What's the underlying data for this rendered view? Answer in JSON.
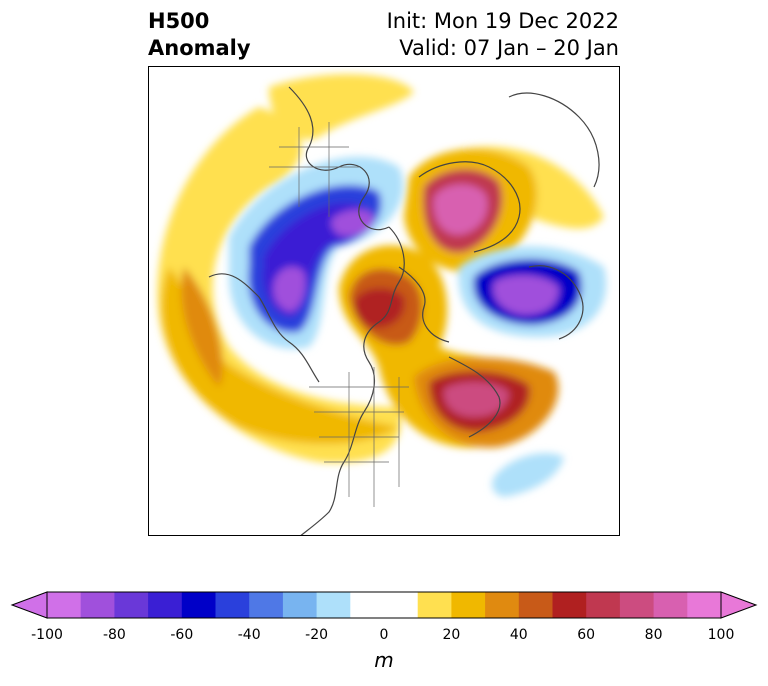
{
  "title": {
    "left_line1": "H500",
    "left_line2": "Anomaly",
    "right_line1": "Init: Mon 19 Dec 2022",
    "right_line2": "Valid: 07 Jan – 20 Jan"
  },
  "colorbar": {
    "units": "m",
    "ticks": [
      "-100",
      "-80",
      "-60",
      "-40",
      "-20",
      "0",
      "20",
      "40",
      "60",
      "80",
      "100"
    ],
    "colors": [
      "#d070e8",
      "#a050dc",
      "#6a38d8",
      "#3a1fd4",
      "#0000c8",
      "#2a40dc",
      "#4f78e6",
      "#78b4f0",
      "#aee0fa",
      "#ffffff",
      "#ffffff",
      "#ffe050",
      "#f0b800",
      "#e08a10",
      "#c85a18",
      "#b02020",
      "#c03850",
      "#cc4c80",
      "#d860b0",
      "#e878d8"
    ]
  },
  "map": {
    "region": "Northern Hemisphere polar stereographic",
    "features": [
      "coastlines",
      "country-borders",
      "state-borders"
    ]
  }
}
